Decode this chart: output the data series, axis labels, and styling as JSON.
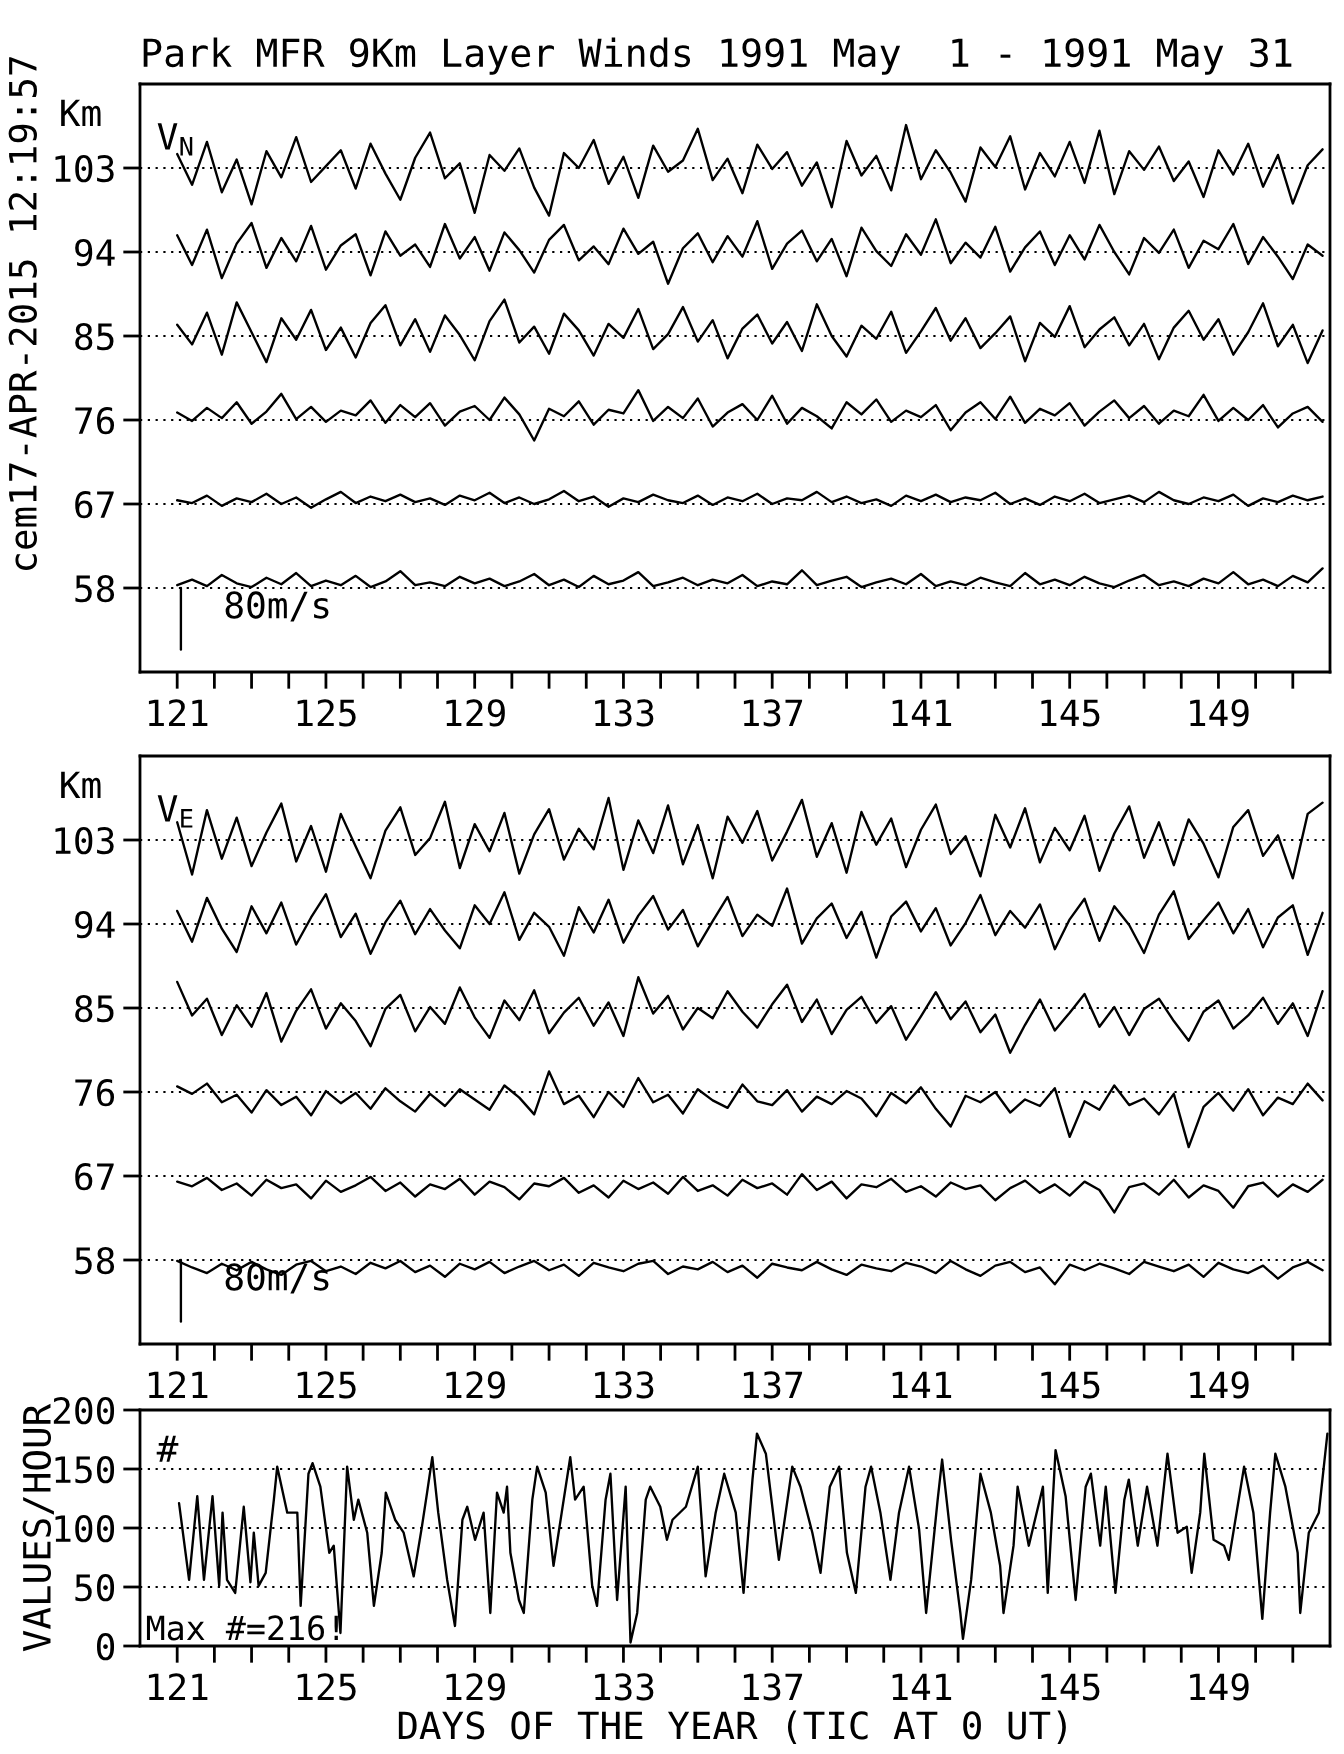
{
  "chart_data": [
    {
      "type": "line",
      "title": "Park MFR 9Km Layer Winds 1991 May  1 - 1991 May 31",
      "subtitle": "V$_{N}$",
      "ylabel": "Km",
      "annotations": [
        "cem17-APR-2015 12:19:57",
        "80m/s"
      ],
      "x": [
        121.0,
        121.4,
        121.8,
        122.2,
        122.6,
        123.0,
        123.4,
        123.8,
        124.2,
        124.6,
        125.0,
        125.4,
        125.8,
        126.2,
        126.6,
        127.0,
        127.4,
        127.8,
        128.2,
        128.6,
        129.0,
        129.4,
        129.8,
        130.2,
        130.6,
        131.0,
        131.4,
        131.8,
        132.2,
        132.6,
        133.0,
        133.4,
        133.8,
        134.2,
        134.6,
        135.0,
        135.4,
        135.8,
        136.2,
        136.6,
        137.0,
        137.4,
        137.8,
        138.2,
        138.6,
        139.0,
        139.4,
        139.8,
        140.2,
        140.6,
        141.0,
        141.4,
        141.8,
        142.2,
        142.6,
        143.0,
        143.4,
        143.8,
        144.2,
        144.6,
        145.0,
        145.4,
        145.8,
        146.2,
        146.6,
        147.0,
        147.4,
        147.8,
        148.2,
        148.6,
        149.0,
        149.4,
        149.8,
        150.2,
        150.6,
        151.0,
        151.4,
        151.8
      ],
      "series": [
        {
          "color": "#000000",
          "values": [
            104.5,
            101.2,
            105.8,
            100.4,
            103.9,
            99.1,
            104.8,
            102.0,
            106.3,
            101.5,
            103.2,
            104.9,
            100.8,
            105.6,
            102.4,
            99.6,
            104.1,
            106.8,
            101.9,
            103.5,
            98.2,
            104.4,
            102.7,
            105.1,
            100.9,
            97.9,
            104.6,
            103.0,
            106.0,
            101.3,
            104.2,
            99.8,
            105.4,
            102.6,
            103.8,
            107.2,
            101.7,
            104.0,
            100.3,
            105.5,
            102.9,
            104.7,
            101.1,
            103.6,
            98.8,
            105.9,
            102.2,
            104.3,
            100.6,
            107.6,
            101.8,
            104.9,
            102.5,
            99.4,
            105.2,
            103.1,
            106.4,
            100.7,
            104.6,
            102.1,
            105.8,
            101.4,
            107.0,
            100.2,
            104.8,
            102.8,
            105.3,
            101.6,
            103.7,
            99.9,
            104.9,
            102.3,
            105.6,
            101.0,
            104.4,
            99.2,
            103.3,
            105.0
          ]
        },
        {
          "color": "#000000",
          "values": [
            95.8,
            92.6,
            96.4,
            91.2,
            94.9,
            97.1,
            92.3,
            95.5,
            93.0,
            96.8,
            92.1,
            94.7,
            95.9,
            91.5,
            96.2,
            93.6,
            94.8,
            92.4,
            97.0,
            93.3,
            95.6,
            92.0,
            96.1,
            94.2,
            91.8,
            95.3,
            96.9,
            93.1,
            94.6,
            92.7,
            96.5,
            93.8,
            95.1,
            90.6,
            94.4,
            96.0,
            92.9,
            95.7,
            93.5,
            97.3,
            92.2,
            94.9,
            96.3,
            93.0,
            95.4,
            91.4,
            96.6,
            94.1,
            92.5,
            95.9,
            93.7,
            97.5,
            92.8,
            95.0,
            93.4,
            96.7,
            91.9,
            94.5,
            96.2,
            92.6,
            95.8,
            93.2,
            96.9,
            94.0,
            91.6,
            95.5,
            93.9,
            96.4,
            92.3,
            95.2,
            94.3,
            97.0,
            92.7,
            95.6,
            93.5,
            91.1,
            94.8,
            93.6
          ]
        },
        {
          "color": "#000000",
          "values": [
            86.2,
            84.1,
            87.5,
            83.0,
            88.6,
            85.4,
            82.2,
            86.9,
            84.6,
            87.8,
            83.5,
            85.9,
            82.7,
            86.4,
            88.3,
            84.0,
            86.8,
            83.3,
            87.2,
            85.1,
            82.4,
            86.6,
            88.9,
            84.3,
            86.0,
            83.1,
            87.4,
            85.6,
            82.9,
            86.3,
            84.8,
            87.9,
            83.6,
            85.2,
            88.1,
            84.4,
            86.7,
            82.6,
            85.8,
            87.3,
            84.2,
            86.5,
            83.4,
            88.4,
            85.0,
            82.8,
            86.1,
            84.7,
            87.6,
            83.2,
            85.5,
            88.0,
            84.5,
            86.9,
            83.7,
            85.3,
            87.1,
            82.3,
            86.4,
            84.9,
            88.2,
            83.8,
            85.7,
            87.0,
            84.0,
            86.3,
            82.5,
            85.9,
            87.7,
            84.6,
            86.8,
            83.0,
            85.4,
            88.5,
            83.9,
            86.2,
            82.1,
            85.6
          ]
        },
        {
          "color": "#000000",
          "values": [
            76.8,
            75.9,
            77.3,
            76.2,
            77.9,
            75.6,
            76.9,
            78.8,
            76.1,
            77.4,
            75.8,
            77.0,
            76.5,
            78.1,
            75.7,
            77.6,
            76.3,
            77.8,
            75.4,
            76.9,
            77.5,
            76.0,
            78.4,
            76.6,
            73.8,
            77.2,
            76.4,
            78.0,
            75.5,
            77.1,
            76.7,
            79.2,
            75.9,
            77.4,
            76.2,
            78.3,
            75.3,
            76.8,
            77.7,
            76.0,
            78.6,
            75.6,
            77.3,
            76.4,
            75.1,
            77.9,
            76.6,
            78.2,
            75.8,
            77.0,
            76.3,
            77.6,
            74.9,
            76.8,
            77.9,
            76.1,
            78.5,
            75.7,
            77.2,
            76.5,
            77.8,
            75.4,
            76.9,
            78.1,
            76.2,
            77.5,
            75.6,
            77.0,
            76.4,
            78.7,
            75.9,
            77.3,
            76.0,
            77.6,
            75.2,
            76.7,
            77.4,
            75.8
          ]
        },
        {
          "color": "#000000",
          "values": [
            67.4,
            67.1,
            67.9,
            66.8,
            67.6,
            67.2,
            68.1,
            67.0,
            67.7,
            66.6,
            67.5,
            68.3,
            67.1,
            67.8,
            67.3,
            68.0,
            67.2,
            67.6,
            66.9,
            67.9,
            67.4,
            68.2,
            67.1,
            67.7,
            67.0,
            67.5,
            68.4,
            67.3,
            67.8,
            66.7,
            67.6,
            67.2,
            68.0,
            67.4,
            67.1,
            67.9,
            66.9,
            67.7,
            67.3,
            68.1,
            67.0,
            67.6,
            67.4,
            68.3,
            67.2,
            67.8,
            67.1,
            67.5,
            66.8,
            67.9,
            67.3,
            68.0,
            67.2,
            67.7,
            67.4,
            68.2,
            67.0,
            67.6,
            66.9,
            67.8,
            67.3,
            68.1,
            67.1,
            67.5,
            67.9,
            67.2,
            68.3,
            67.4,
            67.0,
            67.7,
            67.3,
            68.0,
            66.8,
            67.6,
            67.2,
            67.9,
            67.4,
            67.8
          ]
        },
        {
          "color": "#000000",
          "values": [
            58.3,
            58.9,
            58.2,
            59.4,
            58.5,
            58.1,
            59.1,
            58.4,
            59.6,
            58.2,
            58.8,
            58.3,
            59.3,
            58.1,
            58.7,
            59.8,
            58.3,
            58.6,
            58.2,
            59.2,
            58.5,
            59.0,
            58.2,
            58.7,
            59.5,
            58.3,
            58.9,
            58.1,
            59.3,
            58.4,
            58.8,
            59.7,
            58.2,
            58.6,
            59.1,
            58.3,
            58.9,
            58.5,
            59.4,
            58.2,
            58.7,
            58.4,
            59.9,
            58.3,
            58.8,
            59.2,
            58.1,
            58.6,
            59.0,
            58.4,
            59.5,
            58.2,
            58.7,
            58.3,
            59.1,
            58.6,
            58.2,
            59.6,
            58.4,
            58.9,
            58.3,
            59.2,
            58.5,
            58.1,
            58.8,
            59.4,
            58.3,
            58.7,
            58.2,
            59.0,
            58.5,
            59.7,
            58.4,
            58.9,
            58.2,
            59.3,
            58.6,
            60.1
          ]
        },
        {
          "color": "#000000",
          "x": [
            121.1,
            121.1
          ],
          "values": [
            58,
            51.4
          ]
        }
      ],
      "xlim": [
        120,
        152
      ],
      "ylim": [
        49,
        112
      ],
      "xticks": [
        121,
        {
          "value": 122,
          "label": null
        },
        {
          "value": 123,
          "label": null
        },
        {
          "value": 124,
          "label": null
        },
        125,
        {
          "value": 126,
          "label": null
        },
        {
          "value": 127,
          "label": null
        },
        {
          "value": 128,
          "label": null
        },
        129,
        {
          "value": 130,
          "label": null
        },
        {
          "value": 131,
          "label": null
        },
        {
          "value": 132,
          "label": null
        },
        133,
        {
          "value": 134,
          "label": null
        },
        {
          "value": 135,
          "label": null
        },
        {
          "value": 136,
          "label": null
        },
        137,
        {
          "value": 138,
          "label": null
        },
        {
          "value": 139,
          "label": null
        },
        {
          "value": 140,
          "label": null
        },
        141,
        {
          "value": 142,
          "label": null
        },
        {
          "value": 143,
          "label": null
        },
        {
          "value": 144,
          "label": null
        },
        145,
        {
          "value": 146,
          "label": null
        },
        {
          "value": 147,
          "label": null
        },
        {
          "value": 148,
          "label": null
        },
        149,
        {
          "value": 150,
          "label": null
        },
        {
          "value": 151,
          "label": null
        }
      ],
      "yticks": [
        58,
        67,
        76,
        85,
        94,
        103
      ],
      "grid": "y",
      "line_style": "solid"
    },
    {
      "type": "line",
      "subtitle": "V$_{E}$",
      "ylabel": "Km",
      "annotations": [
        "80m/s"
      ],
      "x": [
        121.0,
        121.4,
        121.8,
        122.2,
        122.6,
        123.0,
        123.4,
        123.8,
        124.2,
        124.6,
        125.0,
        125.4,
        125.8,
        126.2,
        126.6,
        127.0,
        127.4,
        127.8,
        128.2,
        128.6,
        129.0,
        129.4,
        129.8,
        130.2,
        130.6,
        131.0,
        131.4,
        131.8,
        132.2,
        132.6,
        133.0,
        133.4,
        133.8,
        134.2,
        134.6,
        135.0,
        135.4,
        135.8,
        136.2,
        136.6,
        137.0,
        137.4,
        137.8,
        138.2,
        138.6,
        139.0,
        139.4,
        139.8,
        140.2,
        140.6,
        141.0,
        141.4,
        141.8,
        142.2,
        142.6,
        143.0,
        143.4,
        143.8,
        144.2,
        144.6,
        145.0,
        145.4,
        145.8,
        146.2,
        146.6,
        147.0,
        147.4,
        147.8,
        148.2,
        148.6,
        149.0,
        149.4,
        149.8,
        150.2,
        150.6,
        151.0,
        151.4,
        151.8
      ],
      "series": [
        {
          "color": "#000000",
          "values": [
            104.9,
            99.3,
            106.2,
            101.0,
            105.4,
            100.2,
            103.8,
            106.9,
            100.7,
            104.5,
            99.6,
            105.8,
            102.3,
            98.9,
            104.0,
            106.5,
            101.4,
            103.2,
            107.1,
            100.0,
            104.7,
            101.8,
            105.9,
            99.4,
            103.6,
            106.3,
            100.9,
            104.2,
            102.0,
            107.5,
            99.8,
            105.1,
            101.6,
            106.7,
            100.4,
            104.6,
            98.9,
            105.5,
            102.7,
            106.1,
            100.8,
            103.9,
            107.3,
            101.2,
            104.8,
            99.5,
            106.0,
            102.5,
            105.3,
            100.1,
            104.1,
            106.8,
            101.5,
            103.4,
            99.1,
            105.7,
            102.2,
            106.4,
            100.6,
            104.3,
            101.9,
            105.6,
            99.7,
            103.7,
            106.6,
            101.1,
            104.9,
            100.3,
            105.2,
            102.6,
            99.0,
            104.4,
            106.2,
            101.3,
            103.5,
            98.9,
            105.8,
            107.0
          ]
        },
        {
          "color": "#000000",
          "values": [
            95.4,
            92.1,
            96.8,
            93.5,
            91.0,
            95.9,
            93.0,
            96.3,
            91.8,
            94.7,
            97.2,
            92.6,
            95.1,
            90.8,
            94.2,
            96.5,
            92.9,
            95.6,
            93.3,
            91.4,
            96.0,
            94.0,
            97.4,
            92.3,
            95.2,
            93.7,
            90.6,
            95.8,
            93.1,
            96.6,
            92.0,
            94.9,
            97.0,
            93.4,
            95.5,
            91.6,
            94.3,
            96.9,
            92.7,
            95.0,
            93.8,
            97.8,
            91.9,
            94.6,
            96.2,
            92.5,
            95.3,
            90.4,
            94.8,
            96.4,
            93.2,
            95.7,
            91.7,
            94.1,
            97.1,
            92.8,
            95.4,
            93.6,
            96.1,
            91.3,
            94.5,
            96.7,
            92.2,
            95.9,
            93.9,
            90.9,
            95.0,
            97.5,
            92.4,
            94.4,
            96.3,
            93.0,
            95.6,
            91.5,
            94.7,
            96.0,
            90.7,
            95.2
          ]
        },
        {
          "color": "#000000",
          "values": [
            87.8,
            84.2,
            86.0,
            82.1,
            85.3,
            83.0,
            86.6,
            81.4,
            84.7,
            87.0,
            82.8,
            85.5,
            83.6,
            80.9,
            84.9,
            86.4,
            82.5,
            85.1,
            83.3,
            87.2,
            84.0,
            81.8,
            85.8,
            83.7,
            86.9,
            82.3,
            84.5,
            86.1,
            83.1,
            85.6,
            82.0,
            88.3,
            84.4,
            86.3,
            82.7,
            85.0,
            83.9,
            86.8,
            84.6,
            82.9,
            85.4,
            87.5,
            83.5,
            85.9,
            82.2,
            84.8,
            86.2,
            83.4,
            85.2,
            81.6,
            84.1,
            86.7,
            83.8,
            85.7,
            82.4,
            84.3,
            80.2,
            83.2,
            85.9,
            82.6,
            84.5,
            86.5,
            83.0,
            85.1,
            82.1,
            84.9,
            86.0,
            83.6,
            81.5,
            84.6,
            85.8,
            82.8,
            84.2,
            86.1,
            83.3,
            85.5,
            82.0,
            86.8
          ]
        },
        {
          "color": "#000000",
          "values": [
            76.6,
            75.8,
            76.9,
            74.9,
            75.7,
            73.8,
            76.2,
            74.6,
            75.5,
            73.5,
            76.1,
            74.8,
            75.9,
            74.2,
            76.4,
            75.0,
            73.9,
            75.8,
            74.5,
            76.3,
            75.2,
            74.1,
            76.7,
            75.4,
            73.6,
            78.2,
            74.7,
            75.6,
            73.3,
            76.0,
            74.4,
            77.5,
            74.9,
            75.7,
            73.7,
            76.3,
            75.1,
            74.3,
            76.8,
            75.0,
            74.6,
            76.2,
            73.9,
            75.5,
            74.7,
            76.1,
            75.3,
            73.4,
            75.9,
            74.8,
            76.5,
            74.2,
            72.3,
            75.6,
            74.9,
            76.0,
            73.8,
            75.2,
            74.5,
            76.4,
            71.2,
            75.0,
            74.1,
            76.7,
            74.6,
            75.3,
            73.6,
            75.8,
            70.1,
            74.4,
            75.9,
            74.0,
            76.3,
            73.5,
            75.4,
            74.7,
            76.9,
            75.1
          ]
        },
        {
          "color": "#000000",
          "values": [
            66.4,
            65.9,
            66.8,
            65.5,
            66.2,
            64.9,
            66.6,
            65.7,
            66.1,
            64.6,
            66.5,
            65.3,
            66.0,
            66.9,
            65.4,
            66.3,
            64.8,
            66.1,
            65.6,
            66.7,
            65.0,
            66.4,
            65.8,
            64.5,
            66.2,
            65.9,
            66.8,
            65.2,
            66.0,
            64.7,
            66.5,
            65.6,
            66.3,
            65.1,
            66.9,
            65.4,
            66.0,
            64.9,
            66.6,
            65.7,
            66.2,
            65.0,
            67.2,
            65.5,
            66.4,
            64.6,
            66.1,
            65.8,
            66.7,
            65.3,
            65.9,
            64.8,
            66.3,
            65.6,
            66.0,
            64.4,
            65.7,
            66.5,
            65.2,
            66.1,
            64.9,
            66.4,
            65.5,
            63.1,
            65.8,
            66.2,
            65.0,
            66.6,
            64.7,
            66.0,
            65.4,
            63.6,
            65.9,
            66.3,
            64.8,
            66.1,
            65.3,
            66.6
          ]
        },
        {
          "color": "#000000",
          "values": [
            57.9,
            57.2,
            56.6,
            57.6,
            56.9,
            57.8,
            57.0,
            56.4,
            57.5,
            57.9,
            56.8,
            57.3,
            56.5,
            57.7,
            57.1,
            57.9,
            56.7,
            57.4,
            56.2,
            57.6,
            57.0,
            57.8,
            56.6,
            57.3,
            57.9,
            56.9,
            57.5,
            56.3,
            57.7,
            57.2,
            56.8,
            57.6,
            57.9,
            56.5,
            57.3,
            57.0,
            57.8,
            56.7,
            57.4,
            56.1,
            57.6,
            57.2,
            56.9,
            57.8,
            57.0,
            56.4,
            57.5,
            57.1,
            56.8,
            57.7,
            57.3,
            56.6,
            57.9,
            57.0,
            56.3,
            57.4,
            57.8,
            56.7,
            57.2,
            55.4,
            57.5,
            56.9,
            57.6,
            57.1,
            56.5,
            57.8,
            57.3,
            56.8,
            57.5,
            56.2,
            57.7,
            57.0,
            56.6,
            57.4,
            56.0,
            57.2,
            57.8,
            56.9
          ]
        },
        {
          "color": "#000000",
          "x": [
            121.1,
            121.1
          ],
          "values": [
            58,
            51.4
          ]
        }
      ],
      "xlim": [
        120,
        152
      ],
      "ylim": [
        49,
        112
      ],
      "xticks": [
        121,
        {
          "value": 122,
          "label": null
        },
        {
          "value": 123,
          "label": null
        },
        {
          "value": 124,
          "label": null
        },
        125,
        {
          "value": 126,
          "label": null
        },
        {
          "value": 127,
          "label": null
        },
        {
          "value": 128,
          "label": null
        },
        129,
        {
          "value": 130,
          "label": null
        },
        {
          "value": 131,
          "label": null
        },
        {
          "value": 132,
          "label": null
        },
        133,
        {
          "value": 134,
          "label": null
        },
        {
          "value": 135,
          "label": null
        },
        {
          "value": 136,
          "label": null
        },
        137,
        {
          "value": 138,
          "label": null
        },
        {
          "value": 139,
          "label": null
        },
        {
          "value": 140,
          "label": null
        },
        141,
        {
          "value": 142,
          "label": null
        },
        {
          "value": 143,
          "label": null
        },
        {
          "value": 144,
          "label": null
        },
        145,
        {
          "value": 146,
          "label": null
        },
        {
          "value": 147,
          "label": null
        },
        {
          "value": 148,
          "label": null
        },
        149,
        {
          "value": 150,
          "label": null
        },
        {
          "value": 151,
          "label": null
        }
      ],
      "yticks": [
        58,
        67,
        76,
        85,
        94,
        103
      ],
      "grid": "y",
      "line_style": "solid"
    },
    {
      "type": "line",
      "subtitle": "#",
      "xlabel": "DAYS OF THE YEAR (TIC AT 0 UT)",
      "ylabel": "VALUES/HOUR",
      "annotations": [
        "Max #=216!"
      ],
      "series": [
        {
          "color": "#000000",
          "x": [
            121.05,
            121.32,
            121.54,
            121.72,
            121.95,
            122.13,
            122.22,
            122.34,
            122.56,
            122.79,
            122.97,
            123.06,
            123.19,
            123.38,
            123.6,
            123.69,
            123.96,
            124.23,
            124.32,
            124.53,
            124.64,
            124.85,
            125.09,
            125.21,
            125.39,
            125.57,
            125.75,
            125.87,
            126.11,
            126.29,
            126.5,
            126.61,
            126.86,
            127.09,
            127.36,
            127.58,
            127.72,
            127.86,
            128.02,
            128.26,
            128.47,
            128.67,
            128.8,
            129.01,
            129.24,
            129.42,
            129.6,
            129.78,
            129.87,
            129.96,
            130.19,
            130.32,
            130.55,
            130.68,
            130.91,
            131.12,
            131.34,
            131.57,
            131.7,
            131.93,
            132.16,
            132.29,
            132.52,
            132.65,
            132.83,
            133.06,
            133.19,
            133.37,
            133.6,
            133.72,
            133.99,
            134.17,
            134.32,
            134.68,
            135.0,
            135.21,
            135.48,
            135.71,
            136.02,
            136.23,
            136.47,
            136.59,
            136.83,
            137.1,
            137.18,
            137.54,
            137.76,
            138.08,
            138.3,
            138.55,
            138.8,
            139.01,
            139.25,
            139.51,
            139.66,
            139.91,
            140.18,
            140.41,
            140.68,
            140.95,
            141.14,
            141.45,
            141.57,
            141.81,
            142.06,
            142.13,
            142.35,
            142.6,
            142.88,
            143.13,
            143.22,
            143.49,
            143.6,
            143.9,
            144.28,
            144.41,
            144.62,
            144.89,
            145.16,
            145.43,
            145.57,
            145.82,
            145.97,
            146.23,
            146.47,
            146.59,
            146.83,
            147.08,
            147.36,
            147.63,
            147.9,
            148.15,
            148.28,
            148.51,
            148.62,
            148.87,
            149.15,
            149.28,
            149.69,
            149.94,
            150.18,
            150.39,
            150.53,
            150.8,
            151.13,
            151.2,
            151.43,
            151.7,
            151.93
          ],
          "values": [
            121,
            56,
            127,
            56,
            127,
            51,
            113,
            56,
            45,
            118,
            54,
            96,
            51,
            62,
            124,
            152,
            113,
            113,
            34,
            146,
            155,
            135,
            79,
            85,
            11,
            152,
            107,
            124,
            96,
            34,
            79,
            130,
            107,
            96,
            59,
            101,
            130,
            160,
            113,
            56,
            17,
            107,
            118,
            90,
            113,
            28,
            130,
            113,
            135,
            79,
            39,
            28,
            124,
            152,
            130,
            68,
            113,
            160,
            124,
            135,
            51,
            34,
            124,
            146,
            39,
            135,
            3,
            28,
            124,
            135,
            118,
            90,
            107,
            118,
            152,
            59,
            113,
            146,
            113,
            45,
            141,
            180,
            163,
            93,
            73,
            152,
            135,
            96,
            62,
            135,
            152,
            79,
            45,
            135,
            152,
            113,
            56,
            113,
            152,
            99,
            28,
            124,
            158,
            90,
            28,
            6,
            56,
            146,
            113,
            68,
            28,
            85,
            135,
            85,
            135,
            45,
            166,
            127,
            39,
            135,
            146,
            85,
            135,
            45,
            124,
            141,
            85,
            135,
            85,
            163,
            96,
            101,
            62,
            113,
            163,
            90,
            85,
            73,
            152,
            113,
            23,
            113,
            163,
            135,
            79,
            28,
            96,
            113,
            180
          ]
        }
      ],
      "xlim": [
        120,
        152
      ],
      "ylim": [
        0,
        200
      ],
      "xticks": [
        121,
        {
          "value": 122,
          "label": null
        },
        {
          "value": 123,
          "label": null
        },
        {
          "value": 124,
          "label": null
        },
        125,
        {
          "value": 126,
          "label": null
        },
        {
          "value": 127,
          "label": null
        },
        {
          "value": 128,
          "label": null
        },
        129,
        {
          "value": 130,
          "label": null
        },
        {
          "value": 131,
          "label": null
        },
        {
          "value": 132,
          "label": null
        },
        133,
        {
          "value": 134,
          "label": null
        },
        {
          "value": 135,
          "label": null
        },
        {
          "value": 136,
          "label": null
        },
        137,
        {
          "value": 138,
          "label": null
        },
        {
          "value": 139,
          "label": null
        },
        {
          "value": 140,
          "label": null
        },
        141,
        {
          "value": 142,
          "label": null
        },
        {
          "value": 143,
          "label": null
        },
        {
          "value": 144,
          "label": null
        },
        145,
        {
          "value": 146,
          "label": null
        },
        {
          "value": 147,
          "label": null
        },
        {
          "value": 148,
          "label": null
        },
        149,
        {
          "value": 150,
          "label": null
        },
        {
          "value": 151,
          "label": null
        }
      ],
      "yticks": [
        0,
        50,
        100,
        150,
        200
      ],
      "grid": "y",
      "line_style": "solid"
    }
  ]
}
